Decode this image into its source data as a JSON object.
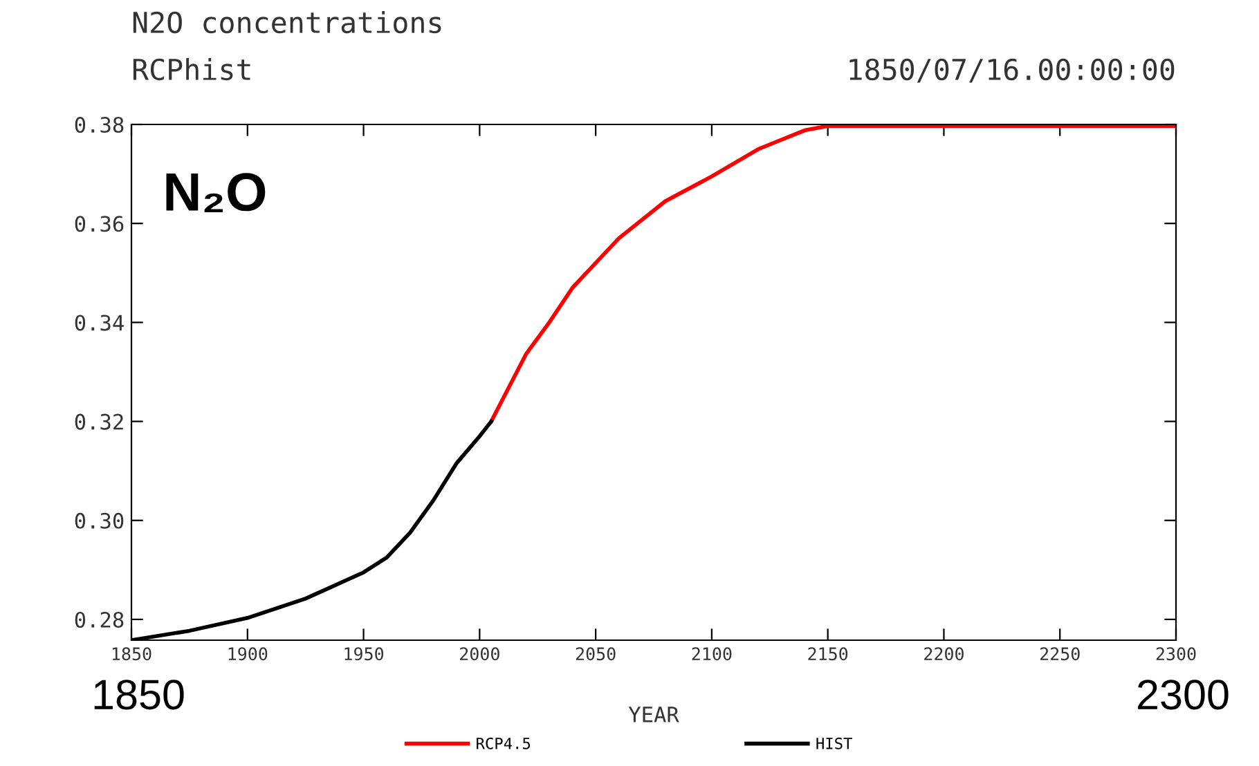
{
  "chart_data": {
    "type": "line",
    "title": "N2O concentrations",
    "subtitle": "RCPhist",
    "xlabel": "YEAR",
    "annotations": [
      "1850/07/16.00:00:00",
      "N₂O",
      "1850",
      "2300"
    ],
    "xlim": [
      1850,
      2300
    ],
    "xticks": [
      1850,
      1900,
      1950,
      2000,
      2050,
      2100,
      2150,
      2200,
      2250,
      2300
    ],
    "ylim": [
      0.2758,
      0.38
    ],
    "yticks": [
      0.28,
      {
        "value": 0.3,
        "label": "0.30"
      },
      0.32,
      0.34,
      0.36,
      {
        "value": 0.38,
        "label": "0.38"
      }
    ],
    "legend": "bottom",
    "grid": false,
    "line_style": "solid",
    "marker": "none",
    "series": [
      {
        "name": "RCP4.5",
        "color": "#ff0000",
        "x": [
          2005,
          2020,
          2030,
          2040,
          2050,
          2060,
          2080,
          2100,
          2120,
          2140,
          2150,
          2200,
          2250,
          2300
        ],
        "values": [
          0.32,
          0.3336,
          0.34,
          0.347,
          0.352,
          0.357,
          0.3645,
          0.3695,
          0.375,
          0.3788,
          0.3797,
          0.3797,
          0.3797,
          0.3797
        ]
      },
      {
        "name": "HIST",
        "color": "#000000",
        "x": [
          1850,
          1875,
          1900,
          1925,
          1950,
          1960,
          1970,
          1980,
          1990,
          2000,
          2005
        ],
        "values": [
          0.2758,
          0.2777,
          0.2803,
          0.2842,
          0.2895,
          0.2925,
          0.2975,
          0.304,
          0.3115,
          0.317,
          0.32
        ]
      }
    ]
  }
}
